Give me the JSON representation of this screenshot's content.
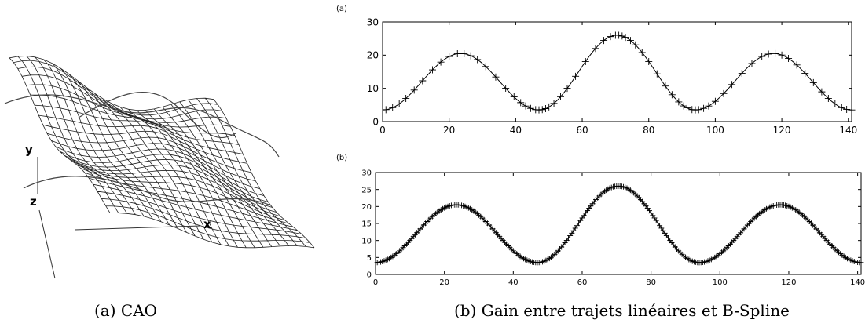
{
  "captions": {
    "a": "(a) CAO",
    "b": "(b) Gain entre trajets linéaires et B-Spline"
  },
  "surface": {
    "axis_labels": {
      "x": "x",
      "y": "y",
      "z": "z"
    }
  },
  "chart_data": [
    {
      "type": "line",
      "panel_label": "(a)",
      "title": "",
      "xlabel": "",
      "ylabel": "",
      "xlim": [
        0,
        141
      ],
      "ylim": [
        0,
        30
      ],
      "x_ticks": [
        0,
        20,
        40,
        60,
        80,
        100,
        120,
        140
      ],
      "y_ticks": [
        0,
        10,
        20,
        30
      ],
      "marker": "+",
      "marker_x": [
        1,
        3,
        5,
        7,
        9.5,
        12,
        15,
        17.5,
        20,
        22.5,
        24.5,
        26.5,
        28.5,
        31,
        34,
        37,
        39.5,
        41.5,
        43,
        44.5,
        46,
        47,
        48,
        49,
        50,
        51.5,
        53.5,
        55.5,
        58,
        61,
        64,
        66.5,
        68.5,
        70,
        71,
        72,
        73,
        74.5,
        76,
        78,
        80,
        82.5,
        85,
        87,
        89,
        90.5,
        91.5,
        93,
        94,
        95,
        96.5,
        98,
        100,
        102.5,
        105,
        108,
        111,
        114,
        116,
        118,
        120,
        122,
        124.5,
        127,
        129.5,
        132,
        134,
        136,
        138,
        139.5,
        141
      ],
      "curve": {
        "description_of_shape": "smooth periodic curve through the markers",
        "x": [
          0,
          23.5,
          47,
          70.5,
          94,
          117.5,
          141
        ],
        "y": [
          3.5,
          20.5,
          3.5,
          26,
          3.5,
          20.5,
          3.5
        ]
      }
    },
    {
      "type": "line",
      "panel_label": "(b)",
      "title": "",
      "xlabel": "",
      "ylabel": "",
      "xlim": [
        0,
        141
      ],
      "ylim": [
        0,
        30
      ],
      "x_ticks": [
        0,
        20,
        40,
        60,
        80,
        100,
        120,
        140
      ],
      "y_ticks": [
        0,
        5,
        10,
        15,
        20,
        25,
        30
      ],
      "marker": "+",
      "marker_step": 0.5,
      "curve": {
        "x": [
          0,
          23.5,
          47,
          70.5,
          94,
          117.5,
          141
        ],
        "y": [
          3.5,
          20.5,
          3.5,
          26,
          3.5,
          20.5,
          3.5
        ]
      }
    }
  ]
}
